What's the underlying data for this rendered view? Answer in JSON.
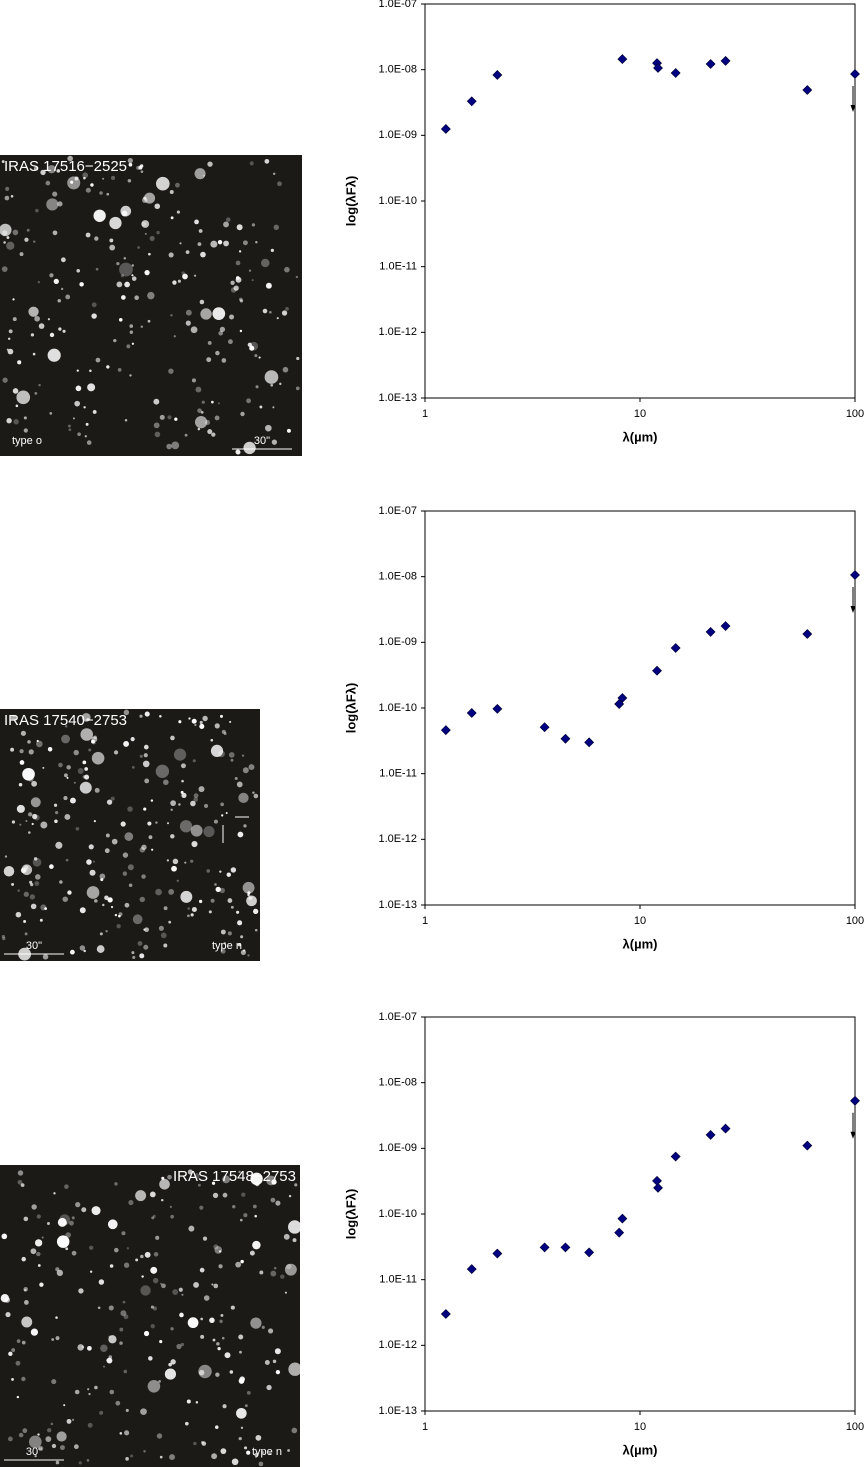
{
  "chart_data": [
    {
      "type": "scatter",
      "image_title": "IRAS 17516−2525",
      "image_note": "type o",
      "image_scale": "30\"",
      "xlabel": "λ(µm)",
      "ylabel": "log(λFλ)",
      "xscale": "log",
      "yscale": "log",
      "grid": false,
      "marker": "diamond",
      "color": "#000080",
      "xlim": [
        1,
        100
      ],
      "xticks": [
        1,
        10,
        100
      ],
      "ylim": [
        1e-13,
        1e-07
      ],
      "yticks": [
        {
          "value": 1e-13,
          "label": "1.0E-13"
        },
        {
          "value": 1e-12,
          "label": "1.0E-12"
        },
        {
          "value": 1e-11,
          "label": "1.0E-11"
        },
        {
          "value": 1e-10,
          "label": "1.0E-10"
        },
        {
          "value": 1e-09,
          "label": "1.0E-09"
        },
        {
          "value": 1e-08,
          "label": "1.0E-08"
        },
        {
          "value": 1e-07,
          "label": "1.0E-07"
        }
      ],
      "x": [
        1.25,
        1.65,
        2.17,
        8.28,
        12,
        12.13,
        14.65,
        21.3,
        25,
        60,
        100
      ],
      "values": [
        1.25e-09,
        3.3e-09,
        8.3e-09,
        1.45e-08,
        1.26e-08,
        1.06e-08,
        8.9e-09,
        1.22e-08,
        1.36e-08,
        4.9e-09,
        8.6e-09
      ],
      "upper_limit": [
        false,
        false,
        false,
        false,
        false,
        false,
        false,
        false,
        false,
        false,
        true
      ]
    },
    {
      "type": "scatter",
      "image_title": "IRAS 17540−2753",
      "image_note": "type n",
      "image_scale": "30\"",
      "xlabel": "λ(µm)",
      "ylabel": "log(λFλ)",
      "xscale": "log",
      "yscale": "log",
      "grid": false,
      "marker": "diamond",
      "color": "#000080",
      "xlim": [
        1,
        100
      ],
      "xticks": [
        1,
        10,
        100
      ],
      "ylim": [
        1e-13,
        1e-07
      ],
      "yticks": [
        {
          "value": 1e-13,
          "label": "1.0E-13"
        },
        {
          "value": 1e-12,
          "label": "1.0E-12"
        },
        {
          "value": 1e-11,
          "label": "1.0E-11"
        },
        {
          "value": 1e-10,
          "label": "1.0E-10"
        },
        {
          "value": 1e-09,
          "label": "1.0E-09"
        },
        {
          "value": 1e-08,
          "label": "1.0E-08"
        },
        {
          "value": 1e-07,
          "label": "1.0E-07"
        }
      ],
      "x": [
        1.25,
        1.65,
        2.17,
        3.6,
        4.5,
        5.8,
        8.0,
        8.28,
        12,
        14.65,
        21.3,
        25,
        60,
        100
      ],
      "values": [
        4.6e-11,
        8.4e-11,
        9.7e-11,
        5.1e-11,
        3.4e-11,
        3e-11,
        1.15e-10,
        1.42e-10,
        3.7e-10,
        8.2e-10,
        1.44e-09,
        1.77e-09,
        1.34e-09,
        1.06e-08
      ],
      "upper_limit": [
        false,
        false,
        false,
        false,
        false,
        false,
        false,
        false,
        false,
        false,
        false,
        false,
        false,
        true
      ]
    },
    {
      "type": "scatter",
      "image_title": "IRAS 17548−2753",
      "image_note": "type n",
      "image_scale": "30\"",
      "xlabel": "λ(µm)",
      "ylabel": "log(λFλ)",
      "xscale": "log",
      "yscale": "log",
      "grid": false,
      "marker": "diamond",
      "color": "#000080",
      "xlim": [
        1,
        100
      ],
      "xticks": [
        1,
        10,
        100
      ],
      "ylim": [
        1e-13,
        1e-07
      ],
      "yticks": [
        {
          "value": 1e-13,
          "label": "1.0E-13"
        },
        {
          "value": 1e-12,
          "label": "1.0E-12"
        },
        {
          "value": 1e-11,
          "label": "1.0E-11"
        },
        {
          "value": 1e-10,
          "label": "1.0E-10"
        },
        {
          "value": 1e-09,
          "label": "1.0E-09"
        },
        {
          "value": 1e-08,
          "label": "1.0E-08"
        },
        {
          "value": 1e-07,
          "label": "1.0E-07"
        }
      ],
      "x": [
        1.25,
        1.65,
        2.17,
        3.6,
        4.5,
        5.8,
        8.0,
        8.28,
        12,
        12.13,
        14.65,
        21.3,
        25,
        60,
        100
      ],
      "values": [
        3e-12,
        1.45e-11,
        2.5e-11,
        3.1e-11,
        3.1e-11,
        2.6e-11,
        5.2e-11,
        8.5e-11,
        3.2e-10,
        2.5e-10,
        7.5e-10,
        1.6e-09,
        2e-09,
        1.1e-09,
        5.3e-09
      ],
      "upper_limit": [
        false,
        false,
        false,
        false,
        false,
        false,
        false,
        false,
        false,
        false,
        false,
        false,
        false,
        false,
        true
      ]
    }
  ]
}
